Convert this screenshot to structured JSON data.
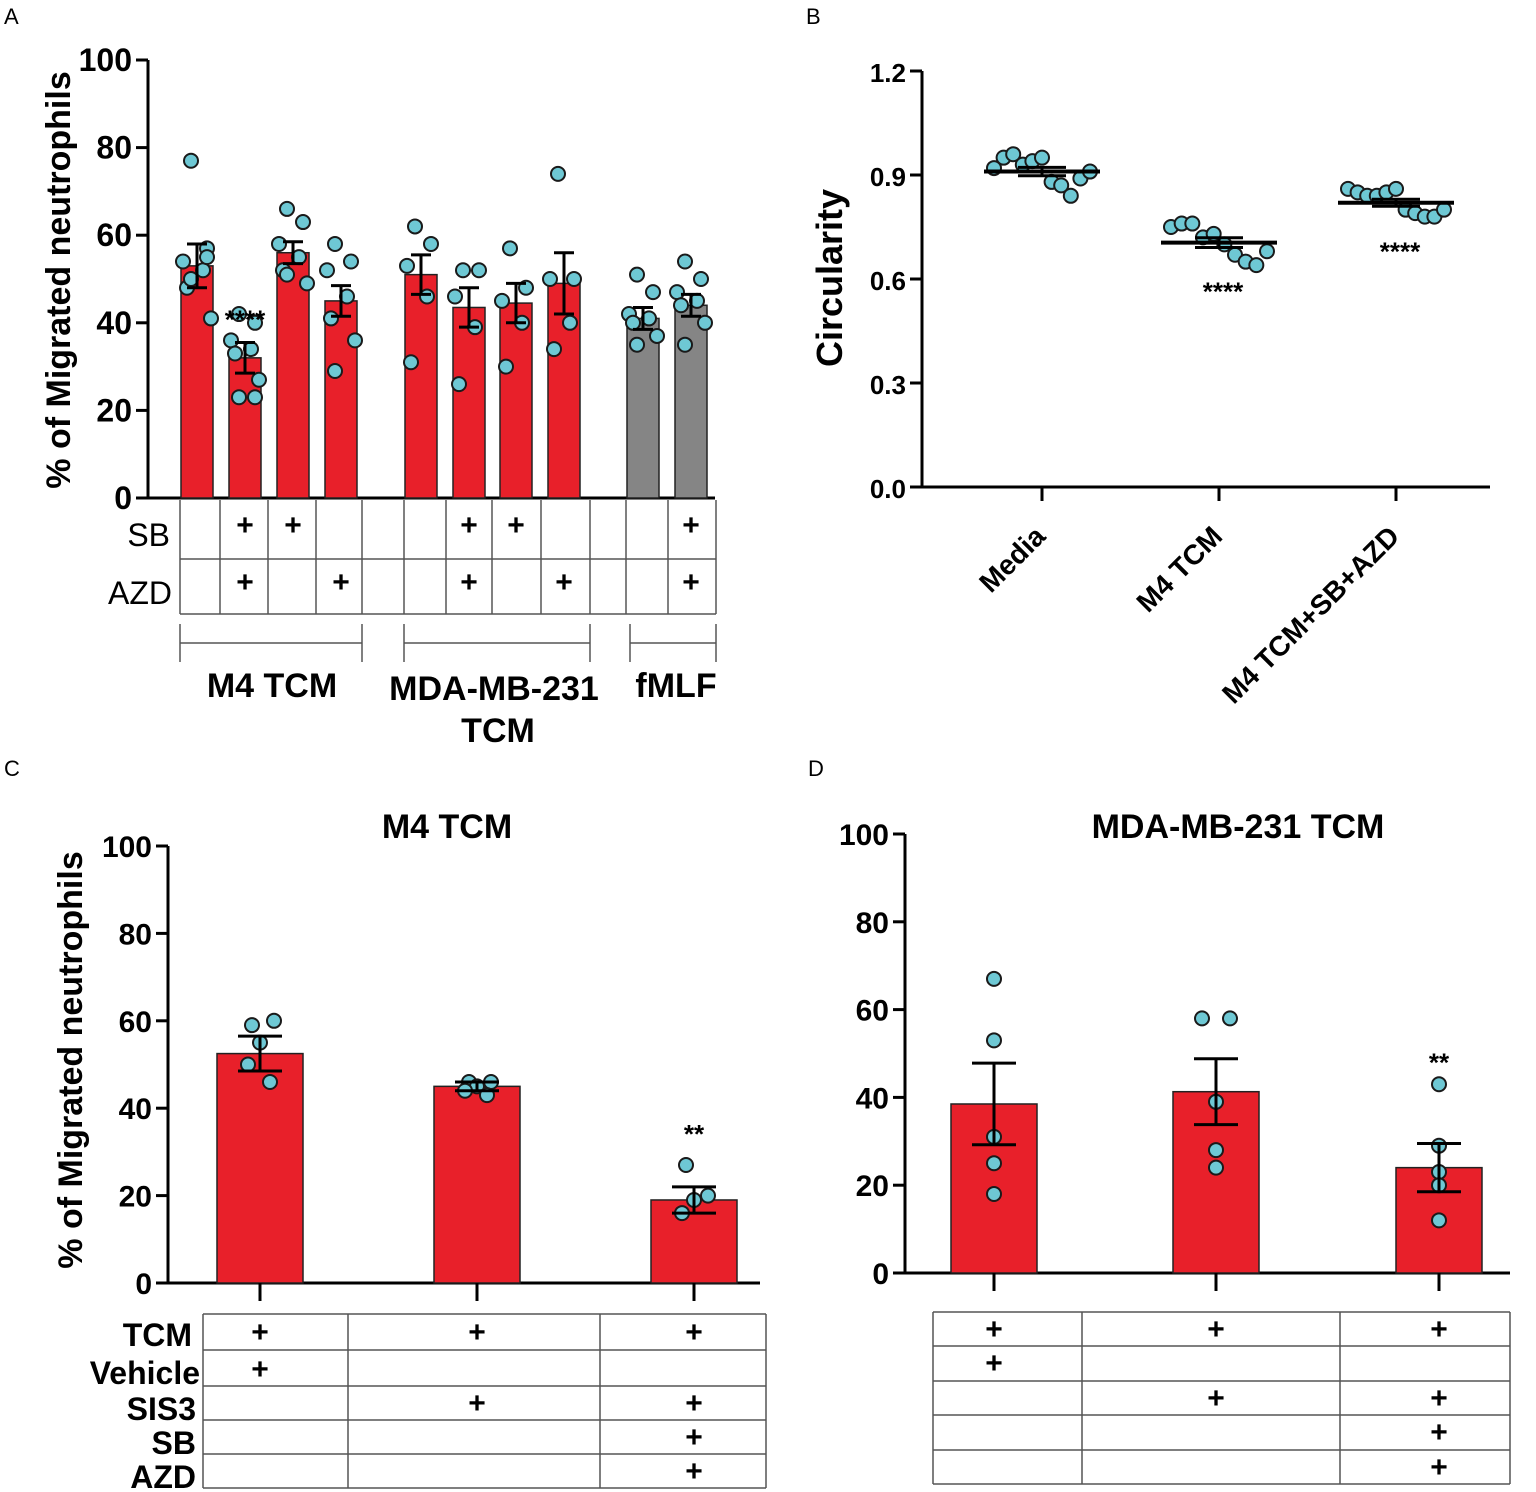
{
  "colors": {
    "bar_red": "#e8202a",
    "bar_gray": "#858585",
    "dot": "#6ec8d4",
    "line": "#000000",
    "table_line": "#555555"
  },
  "chart_data": [
    {
      "panel": "A",
      "type": "bar",
      "ylabel": "% of Migrated neutrophils",
      "ylim": [
        0,
        100
      ],
      "yticks": [
        "0",
        "20",
        "40",
        "60",
        "80",
        "100"
      ],
      "bars": [
        {
          "group": "M4 TCM",
          "color": "red",
          "mean": 53,
          "sem": 5,
          "points": [
            77,
            57,
            54,
            52,
            48,
            41,
            50,
            55
          ],
          "SB": "",
          "AZD": "",
          "sig": ""
        },
        {
          "group": "M4 TCM",
          "color": "red",
          "mean": 32,
          "sem": 3.5,
          "points": [
            42,
            40,
            36,
            34,
            33,
            27,
            23,
            23
          ],
          "SB": "+",
          "AZD": "+",
          "sig": "****"
        },
        {
          "group": "M4 TCM",
          "color": "red",
          "mean": 56,
          "sem": 2.5,
          "points": [
            66,
            63,
            58,
            55,
            52,
            49,
            51
          ],
          "SB": "+",
          "AZD": "",
          "sig": ""
        },
        {
          "group": "M4 TCM",
          "color": "red",
          "mean": 45,
          "sem": 3.5,
          "points": [
            58,
            54,
            52,
            46,
            41,
            36,
            29
          ],
          "SB": "",
          "AZD": "+",
          "sig": ""
        },
        {
          "group": "MDA-MB-231 TCM",
          "color": "red",
          "mean": 51,
          "sem": 4.5,
          "points": [
            62,
            58,
            53,
            46,
            31
          ],
          "SB": "",
          "AZD": "",
          "sig": ""
        },
        {
          "group": "MDA-MB-231 TCM",
          "color": "red",
          "mean": 43.5,
          "sem": 4.5,
          "points": [
            52,
            52,
            46,
            39,
            26
          ],
          "SB": "+",
          "AZD": "+",
          "sig": ""
        },
        {
          "group": "MDA-MB-231 TCM",
          "color": "red",
          "mean": 44.5,
          "sem": 4.5,
          "points": [
            57,
            48,
            45,
            40,
            30
          ],
          "SB": "+",
          "AZD": "",
          "sig": ""
        },
        {
          "group": "MDA-MB-231 TCM",
          "color": "red",
          "mean": 49,
          "sem": 7,
          "points": [
            74,
            50,
            50,
            40,
            34
          ],
          "SB": "",
          "AZD": "+",
          "sig": ""
        },
        {
          "group": "fMLF",
          "color": "gray",
          "mean": 41,
          "sem": 2.5,
          "points": [
            51,
            47,
            42,
            41,
            40,
            37,
            35
          ],
          "SB": "",
          "AZD": "",
          "sig": ""
        },
        {
          "group": "fMLF",
          "color": "gray",
          "mean": 44,
          "sem": 2.5,
          "points": [
            54,
            50,
            47,
            45,
            44,
            40,
            35
          ],
          "SB": "+",
          "AZD": "+",
          "sig": ""
        }
      ],
      "row_labels": [
        "SB",
        "AZD"
      ],
      "group_labels": [
        "M4 TCM",
        "MDA-MB-231",
        "TCM",
        "fMLF"
      ]
    },
    {
      "panel": "B",
      "type": "scatter",
      "ylabel": "Circularity",
      "ylim": [
        0,
        1.2
      ],
      "yticks": [
        "0.0",
        "0.3",
        "0.6",
        "0.9",
        "1.2"
      ],
      "categories": [
        "Media",
        "M4 TCM",
        "M4 TCM+SB+AZD"
      ],
      "means": [
        0.91,
        0.705,
        0.82
      ],
      "sem": [
        0.012,
        0.014,
        0.01
      ],
      "points": [
        [
          0.92,
          0.95,
          0.96,
          0.93,
          0.94,
          0.95,
          0.88,
          0.87,
          0.84,
          0.89,
          0.91
        ],
        [
          0.75,
          0.76,
          0.76,
          0.72,
          0.73,
          0.7,
          0.67,
          0.65,
          0.64,
          0.68
        ],
        [
          0.86,
          0.85,
          0.84,
          0.84,
          0.85,
          0.86,
          0.8,
          0.79,
          0.78,
          0.78,
          0.8
        ]
      ],
      "sig": [
        "",
        "****",
        "****"
      ]
    },
    {
      "panel": "C",
      "type": "bar",
      "title": "M4 TCM",
      "ylabel": "% of Migrated neutrophils",
      "ylim": [
        0,
        100
      ],
      "yticks": [
        "0",
        "20",
        "40",
        "60",
        "80",
        "100"
      ],
      "bars": [
        {
          "mean": 52.5,
          "sem": 4,
          "points": [
            59,
            60,
            55,
            50,
            46
          ],
          "sig": ""
        },
        {
          "mean": 45,
          "sem": 1,
          "points": [
            46,
            46,
            45,
            44,
            43
          ],
          "sig": ""
        },
        {
          "mean": 19,
          "sem": 3,
          "points": [
            27,
            20,
            19,
            16
          ],
          "sig": "**"
        }
      ],
      "row_labels": [
        "TCM",
        "Vehicle",
        "SIS3",
        "SB",
        "AZD"
      ],
      "table": [
        [
          "+",
          "+",
          "+"
        ],
        [
          "+",
          "",
          ""
        ],
        [
          "",
          "+",
          "+"
        ],
        [
          "",
          "",
          "+"
        ],
        [
          "",
          "",
          "+"
        ]
      ]
    },
    {
      "panel": "D",
      "type": "bar",
      "title": "MDA-MB-231 TCM",
      "ylim": [
        0,
        100
      ],
      "yticks": [
        "0",
        "20",
        "40",
        "60",
        "80",
        "100"
      ],
      "bars": [
        {
          "mean": 38.5,
          "sem": 9.3,
          "points": [
            67,
            53,
            31,
            25,
            18
          ],
          "sig": ""
        },
        {
          "mean": 41.3,
          "sem": 7.5,
          "points": [
            58,
            58,
            39,
            28,
            24
          ],
          "sig": ""
        },
        {
          "mean": 24,
          "sem": 5.5,
          "points": [
            43,
            29,
            23,
            20,
            12
          ],
          "sig": "**"
        }
      ],
      "table": [
        [
          "+",
          "+",
          "+"
        ],
        [
          "+",
          "",
          ""
        ],
        [
          "",
          "+",
          "+"
        ],
        [
          "",
          "",
          "+"
        ],
        [
          "",
          "",
          "+"
        ]
      ]
    }
  ],
  "panels": {
    "a": "A",
    "b": "B",
    "c": "C",
    "d": "D"
  }
}
